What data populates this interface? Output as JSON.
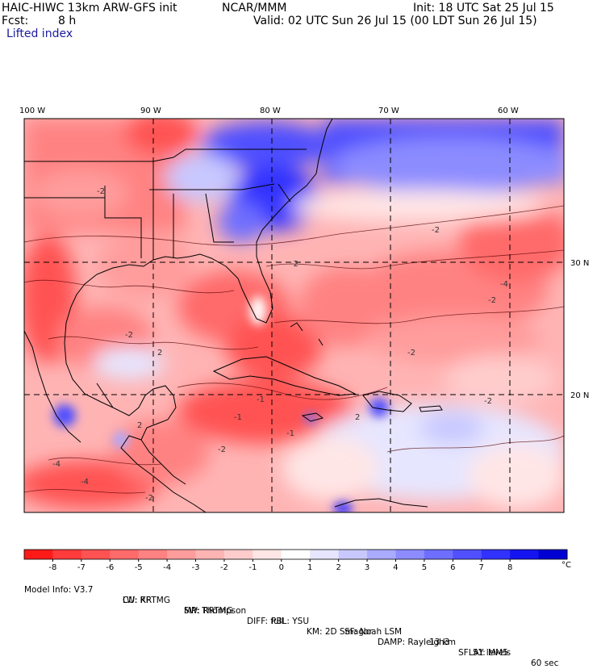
{
  "header": {
    "model": "HAIC-HIWC 13km ARW-GFS init",
    "org": "NCAR/MMM",
    "init": "Init: 18 UTC Sat 25 Jul 15",
    "fcst_label": "Fcst:",
    "fcst_value": "8 h",
    "valid": "Valid: 02 UTC Sun 26 Jul 15 (00 LDT Sun 26 Jul 15)",
    "field": "Lifted index"
  },
  "map": {
    "lon_labels": [
      "100 W",
      "90 W",
      "80 W",
      "70 W",
      "60 W"
    ],
    "lat_labels": [
      "30 N",
      "20 N"
    ],
    "contour_labels": [
      "-2",
      "-2",
      "-2",
      "-2",
      "-2",
      "-2",
      "-4",
      "-4",
      "-4",
      "-1",
      "-1",
      "-1",
      "-2",
      "-2",
      "2",
      "2",
      "2",
      "-2"
    ]
  },
  "colorbar": {
    "ticks": [
      "-8",
      "-7",
      "-6",
      "-5",
      "-4",
      "-3",
      "-2",
      "-1",
      "0",
      "1",
      "2",
      "3",
      "4",
      "5",
      "6",
      "7",
      "8"
    ],
    "unit": "°C",
    "colors": [
      "#ff1a1a",
      "#ff3b3b",
      "#ff5252",
      "#ff6a6a",
      "#ff8282",
      "#ff9c9c",
      "#ffb4b4",
      "#ffcccc",
      "#ffe6e6",
      "#ffffff",
      "#e6e6ff",
      "#c8c8ff",
      "#aaaaff",
      "#8c8cff",
      "#6e6eff",
      "#5050ff",
      "#3232ff",
      "#1414f0",
      "#0000d2"
    ]
  },
  "model_info": {
    "line1": [
      "Model Info: V3.7",
      "CU: KF",
      "MP: Thompson",
      "PBL: YSU",
      "SF: Noah LSM",
      "13 km",
      "51 levels",
      "60 sec"
    ],
    "line2": [
      "LW: RRTMG",
      "SW: RRTMG",
      "DIFF: full",
      "KM: 2D Smagor",
      "DAMP: Rayleigh3",
      "SFLAY: MM5"
    ]
  }
}
